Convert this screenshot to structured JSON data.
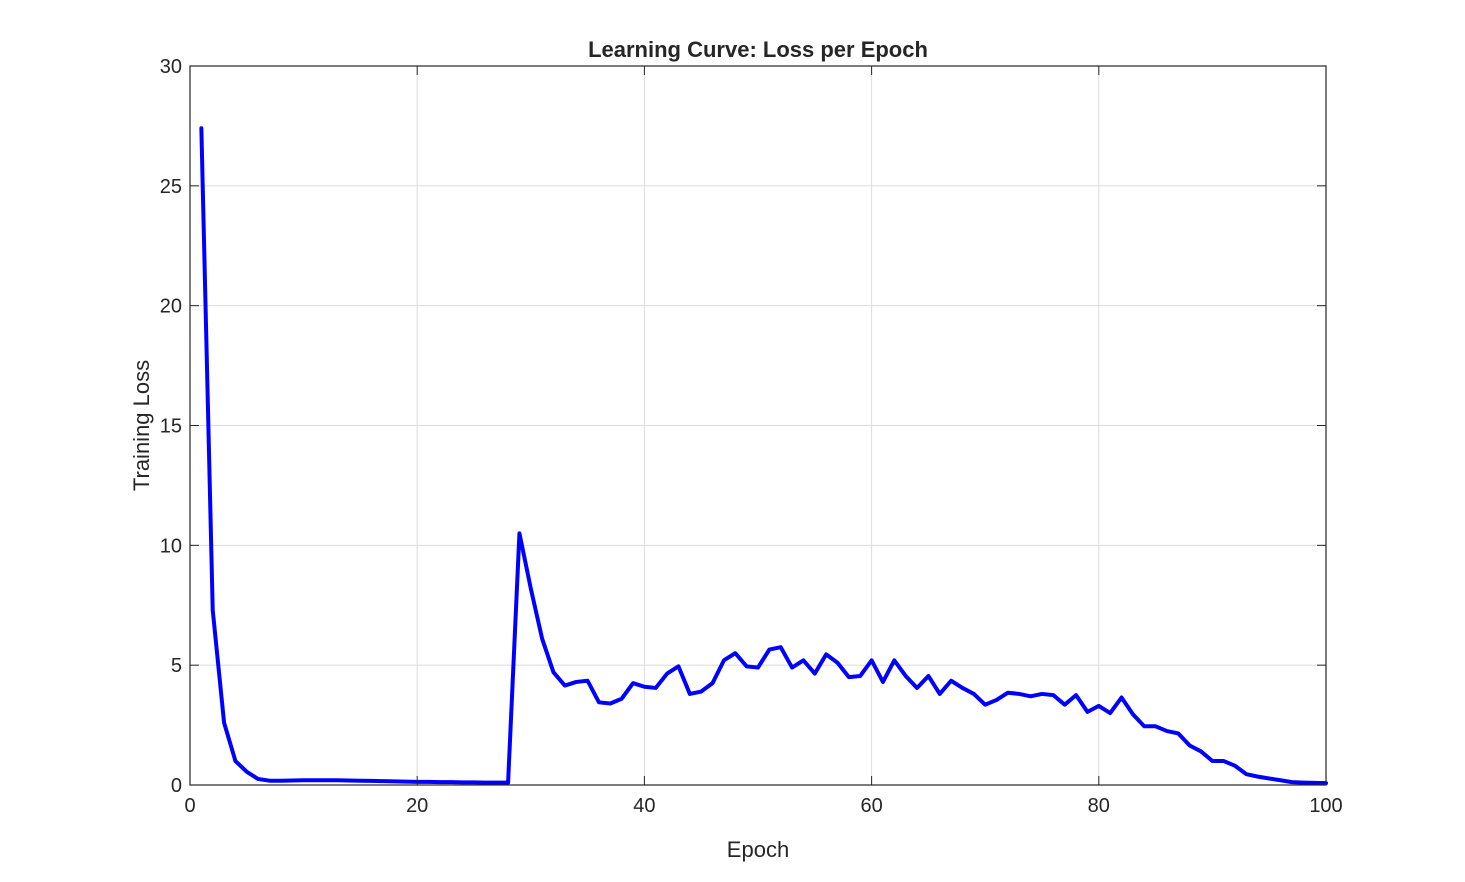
{
  "chart_data": {
    "type": "line",
    "title": "Learning Curve: Loss per Epoch",
    "xlabel": "Epoch",
    "ylabel": "Training Loss",
    "xlim": [
      0,
      100
    ],
    "ylim": [
      0,
      30
    ],
    "xticks": [
      "0",
      "20",
      "40",
      "60",
      "80",
      "100"
    ],
    "yticks": [
      "0",
      "5",
      "10",
      "15",
      "20",
      "25",
      "30"
    ],
    "grid": true,
    "legend": "none",
    "series": [
      {
        "color": "#0000ff",
        "x": [
          1,
          2,
          3,
          4,
          5,
          6,
          7,
          8,
          9,
          10,
          11,
          12,
          13,
          14,
          15,
          16,
          17,
          18,
          19,
          20,
          21,
          22,
          23,
          24,
          25,
          26,
          27,
          28,
          29,
          30,
          31,
          32,
          33,
          34,
          35,
          36,
          37,
          38,
          39,
          40,
          41,
          42,
          43,
          44,
          45,
          46,
          47,
          48,
          49,
          50,
          51,
          52,
          53,
          54,
          55,
          56,
          57,
          58,
          59,
          60,
          61,
          62,
          63,
          64,
          65,
          66,
          67,
          68,
          69,
          70,
          71,
          72,
          73,
          74,
          75,
          76,
          77,
          78,
          79,
          80,
          81,
          82,
          83,
          84,
          85,
          86,
          87,
          88,
          89,
          90,
          91,
          92,
          93,
          94,
          95,
          96,
          97,
          98,
          99,
          100
        ],
        "y": [
          27.4,
          7.3,
          2.6,
          1.0,
          0.55,
          0.25,
          0.18,
          0.18,
          0.19,
          0.2,
          0.2,
          0.2,
          0.2,
          0.19,
          0.18,
          0.17,
          0.16,
          0.15,
          0.14,
          0.13,
          0.13,
          0.12,
          0.12,
          0.11,
          0.11,
          0.1,
          0.1,
          0.1,
          10.5,
          8.2,
          6.1,
          4.7,
          4.15,
          4.3,
          4.35,
          3.45,
          3.4,
          3.6,
          4.25,
          4.1,
          4.05,
          4.65,
          4.95,
          3.8,
          3.9,
          4.25,
          5.2,
          5.5,
          4.95,
          4.9,
          5.65,
          5.75,
          4.9,
          5.2,
          4.65,
          5.45,
          5.1,
          4.5,
          4.55,
          5.2,
          4.3,
          5.2,
          4.55,
          4.05,
          4.55,
          3.8,
          4.35,
          4.05,
          3.8,
          3.35,
          3.55,
          3.85,
          3.8,
          3.7,
          3.8,
          3.75,
          3.35,
          3.75,
          3.05,
          3.3,
          3.0,
          3.65,
          2.95,
          2.45,
          2.45,
          2.25,
          2.15,
          1.65,
          1.4,
          1.0,
          1.0,
          0.8,
          0.45,
          0.35,
          0.27,
          0.2,
          0.12,
          0.1,
          0.09,
          0.08
        ]
      }
    ]
  }
}
